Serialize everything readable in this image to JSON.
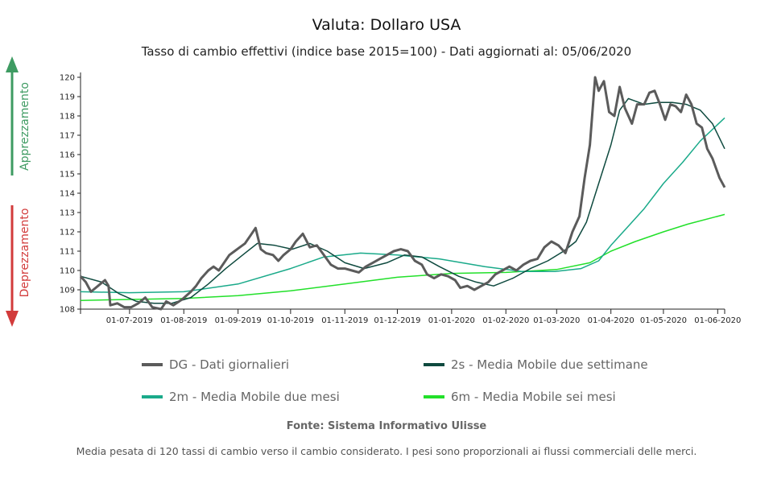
{
  "colors": {
    "dg": "#5b5b5b",
    "ma2s": "#0f4a3f",
    "ma2m": "#1aaa8a",
    "ma6m": "#22e02a",
    "up": "#3e9b62",
    "down": "#d23b3b"
  },
  "side_labels": {
    "up": "Apprezzamento",
    "down": "Deprezzamento"
  },
  "footer": {
    "source": "Fonte: Sistema Informativo Ulisse",
    "note": "Media pesata di 120 tassi di cambio verso il cambio considerato. I pesi sono proporzionali ai flussi commerciali delle merci."
  },
  "chart_data": {
    "type": "line",
    "title": "Valuta: Dollaro USA",
    "subtitle": "Tasso di cambio effettivi (indice base 2015=100) - Dati aggiornati al: 05/06/2020",
    "ylim": [
      108,
      120
    ],
    "yticks": [
      108,
      109,
      110,
      111,
      112,
      113,
      114,
      115,
      116,
      117,
      118,
      119,
      120
    ],
    "xlim": [
      "2019-06-03",
      "2020-06-05"
    ],
    "xticks": [
      "2019-07-01",
      "2019-08-01",
      "2019-09-01",
      "2019-10-01",
      "2019-11-01",
      "2019-12-01",
      "2020-01-01",
      "2020-02-01",
      "2020-03-01",
      "2020-04-01",
      "2020-05-01",
      "2020-06-01"
    ],
    "xtick_labels": [
      "01-07-2019",
      "01-08-2019",
      "01-09-2019",
      "01-10-2019",
      "01-11-2019",
      "01-12-2019",
      "01-01-2020",
      "01-02-2020",
      "01-03-2020",
      "01-04-2020",
      "01-05-2020",
      "01-06-2020"
    ],
    "legend_position": "bottom",
    "series": [
      {
        "name": "DG - Dati giornalieri",
        "key": "dg",
        "points": [
          [
            "2019-06-03",
            109.7
          ],
          [
            "2019-06-06",
            109.4
          ],
          [
            "2019-06-09",
            108.9
          ],
          [
            "2019-06-13",
            109.2
          ],
          [
            "2019-06-17",
            109.5
          ],
          [
            "2019-06-19",
            109.2
          ],
          [
            "2019-06-20",
            108.2
          ],
          [
            "2019-06-24",
            108.3
          ],
          [
            "2019-06-28",
            108.1
          ],
          [
            "2019-07-02",
            108.1
          ],
          [
            "2019-07-06",
            108.3
          ],
          [
            "2019-07-10",
            108.6
          ],
          [
            "2019-07-14",
            108.1
          ],
          [
            "2019-07-19",
            108.0
          ],
          [
            "2019-07-22",
            108.4
          ],
          [
            "2019-07-26",
            108.2
          ],
          [
            "2019-07-31",
            108.5
          ],
          [
            "2019-08-05",
            108.9
          ],
          [
            "2019-08-08",
            109.2
          ],
          [
            "2019-08-11",
            109.6
          ],
          [
            "2019-08-15",
            110.0
          ],
          [
            "2019-08-18",
            110.2
          ],
          [
            "2019-08-21",
            110.0
          ],
          [
            "2019-08-24",
            110.4
          ],
          [
            "2019-08-27",
            110.8
          ],
          [
            "2019-08-30",
            111.0
          ],
          [
            "2019-09-02",
            111.2
          ],
          [
            "2019-09-05",
            111.4
          ],
          [
            "2019-09-08",
            111.8
          ],
          [
            "2019-09-11",
            112.2
          ],
          [
            "2019-09-14",
            111.1
          ],
          [
            "2019-09-17",
            110.9
          ],
          [
            "2019-09-21",
            110.8
          ],
          [
            "2019-09-24",
            110.5
          ],
          [
            "2019-09-27",
            110.8
          ],
          [
            "2019-10-01",
            111.1
          ],
          [
            "2019-10-04",
            111.5
          ],
          [
            "2019-10-08",
            111.9
          ],
          [
            "2019-10-12",
            111.2
          ],
          [
            "2019-10-16",
            111.3
          ],
          [
            "2019-10-20",
            110.8
          ],
          [
            "2019-10-24",
            110.3
          ],
          [
            "2019-10-28",
            110.1
          ],
          [
            "2019-11-01",
            110.1
          ],
          [
            "2019-11-05",
            110.0
          ],
          [
            "2019-11-09",
            109.9
          ],
          [
            "2019-11-13",
            110.2
          ],
          [
            "2019-11-17",
            110.4
          ],
          [
            "2019-11-21",
            110.6
          ],
          [
            "2019-11-25",
            110.8
          ],
          [
            "2019-11-29",
            111.0
          ],
          [
            "2019-12-03",
            111.1
          ],
          [
            "2019-12-07",
            111.0
          ],
          [
            "2019-12-11",
            110.5
          ],
          [
            "2019-12-15",
            110.3
          ],
          [
            "2019-12-18",
            109.8
          ],
          [
            "2019-12-22",
            109.6
          ],
          [
            "2019-12-26",
            109.8
          ],
          [
            "2019-12-30",
            109.7
          ],
          [
            "2020-01-03",
            109.5
          ],
          [
            "2020-01-06",
            109.1
          ],
          [
            "2020-01-10",
            109.2
          ],
          [
            "2020-01-14",
            109.0
          ],
          [
            "2020-01-18",
            109.2
          ],
          [
            "2020-01-22",
            109.4
          ],
          [
            "2020-01-26",
            109.8
          ],
          [
            "2020-01-30",
            110.0
          ],
          [
            "2020-02-03",
            110.2
          ],
          [
            "2020-02-07",
            110.0
          ],
          [
            "2020-02-11",
            110.3
          ],
          [
            "2020-02-15",
            110.5
          ],
          [
            "2020-02-19",
            110.6
          ],
          [
            "2020-02-23",
            111.2
          ],
          [
            "2020-02-27",
            111.5
          ],
          [
            "2020-03-02",
            111.3
          ],
          [
            "2020-03-06",
            110.9
          ],
          [
            "2020-03-10",
            112.0
          ],
          [
            "2020-03-14",
            112.8
          ],
          [
            "2020-03-17",
            114.8
          ],
          [
            "2020-03-20",
            116.5
          ],
          [
            "2020-03-23",
            120.0
          ],
          [
            "2020-03-25",
            119.3
          ],
          [
            "2020-03-28",
            119.8
          ],
          [
            "2020-03-31",
            118.2
          ],
          [
            "2020-04-03",
            118.0
          ],
          [
            "2020-04-06",
            119.5
          ],
          [
            "2020-04-09",
            118.4
          ],
          [
            "2020-04-13",
            117.6
          ],
          [
            "2020-04-16",
            118.6
          ],
          [
            "2020-04-20",
            118.6
          ],
          [
            "2020-04-23",
            119.2
          ],
          [
            "2020-04-26",
            119.3
          ],
          [
            "2020-04-29",
            118.6
          ],
          [
            "2020-05-02",
            117.8
          ],
          [
            "2020-05-05",
            118.6
          ],
          [
            "2020-05-08",
            118.5
          ],
          [
            "2020-05-11",
            118.2
          ],
          [
            "2020-05-14",
            119.1
          ],
          [
            "2020-05-17",
            118.6
          ],
          [
            "2020-05-20",
            117.6
          ],
          [
            "2020-05-23",
            117.4
          ],
          [
            "2020-05-26",
            116.3
          ],
          [
            "2020-05-29",
            115.8
          ],
          [
            "2020-06-02",
            114.8
          ],
          [
            "2020-06-05",
            114.3
          ]
        ]
      },
      {
        "name": "2s - Media Mobile due settimane",
        "key": "ma2s",
        "points": [
          [
            "2019-06-03",
            109.7
          ],
          [
            "2019-06-15",
            109.4
          ],
          [
            "2019-06-25",
            108.8
          ],
          [
            "2019-07-05",
            108.4
          ],
          [
            "2019-07-15",
            108.3
          ],
          [
            "2019-07-25",
            108.3
          ],
          [
            "2019-08-05",
            108.6
          ],
          [
            "2019-08-15",
            109.3
          ],
          [
            "2019-08-25",
            110.1
          ],
          [
            "2019-09-05",
            110.9
          ],
          [
            "2019-09-12",
            111.4
          ],
          [
            "2019-09-22",
            111.3
          ],
          [
            "2019-10-02",
            111.1
          ],
          [
            "2019-10-12",
            111.4
          ],
          [
            "2019-10-22",
            111.0
          ],
          [
            "2019-11-01",
            110.4
          ],
          [
            "2019-11-12",
            110.1
          ],
          [
            "2019-11-25",
            110.4
          ],
          [
            "2019-12-05",
            110.8
          ],
          [
            "2019-12-15",
            110.7
          ],
          [
            "2019-12-25",
            110.2
          ],
          [
            "2020-01-05",
            109.7
          ],
          [
            "2020-01-15",
            109.4
          ],
          [
            "2020-01-25",
            109.2
          ],
          [
            "2020-02-05",
            109.6
          ],
          [
            "2020-02-15",
            110.1
          ],
          [
            "2020-02-25",
            110.5
          ],
          [
            "2020-03-05",
            111.0
          ],
          [
            "2020-03-12",
            111.5
          ],
          [
            "2020-03-18",
            112.5
          ],
          [
            "2020-03-25",
            114.5
          ],
          [
            "2020-04-01",
            116.5
          ],
          [
            "2020-04-06",
            118.3
          ],
          [
            "2020-04-11",
            118.9
          ],
          [
            "2020-04-20",
            118.6
          ],
          [
            "2020-04-28",
            118.7
          ],
          [
            "2020-05-06",
            118.7
          ],
          [
            "2020-05-14",
            118.6
          ],
          [
            "2020-05-22",
            118.3
          ],
          [
            "2020-05-29",
            117.6
          ],
          [
            "2020-06-05",
            116.3
          ]
        ]
      },
      {
        "name": "2m - Media Mobile due mesi",
        "key": "ma2m",
        "points": [
          [
            "2019-06-03",
            108.9
          ],
          [
            "2019-07-01",
            108.85
          ],
          [
            "2019-08-01",
            108.9
          ],
          [
            "2019-09-01",
            109.3
          ],
          [
            "2019-10-01",
            110.1
          ],
          [
            "2019-10-20",
            110.7
          ],
          [
            "2019-11-10",
            110.9
          ],
          [
            "2019-12-01",
            110.8
          ],
          [
            "2019-12-25",
            110.6
          ],
          [
            "2020-01-20",
            110.2
          ],
          [
            "2020-02-10",
            109.95
          ],
          [
            "2020-02-29",
            109.95
          ],
          [
            "2020-03-15",
            110.1
          ],
          [
            "2020-03-25",
            110.5
          ],
          [
            "2020-04-01",
            111.3
          ],
          [
            "2020-04-10",
            112.2
          ],
          [
            "2020-04-20",
            113.2
          ],
          [
            "2020-05-01",
            114.5
          ],
          [
            "2020-05-12",
            115.6
          ],
          [
            "2020-05-22",
            116.7
          ],
          [
            "2020-06-05",
            117.9
          ]
        ]
      },
      {
        "name": "6m - Media Mobile sei mesi",
        "key": "ma6m",
        "points": [
          [
            "2019-06-03",
            108.45
          ],
          [
            "2019-07-01",
            108.5
          ],
          [
            "2019-08-01",
            108.55
          ],
          [
            "2019-09-01",
            108.7
          ],
          [
            "2019-10-01",
            108.95
          ],
          [
            "2019-11-01",
            109.3
          ],
          [
            "2019-12-01",
            109.65
          ],
          [
            "2020-01-01",
            109.85
          ],
          [
            "2020-02-01",
            109.9
          ],
          [
            "2020-03-01",
            110.05
          ],
          [
            "2020-03-20",
            110.4
          ],
          [
            "2020-04-01",
            111.0
          ],
          [
            "2020-04-15",
            111.5
          ],
          [
            "2020-05-01",
            112.0
          ],
          [
            "2020-05-15",
            112.4
          ],
          [
            "2020-06-05",
            112.9
          ]
        ]
      }
    ]
  }
}
